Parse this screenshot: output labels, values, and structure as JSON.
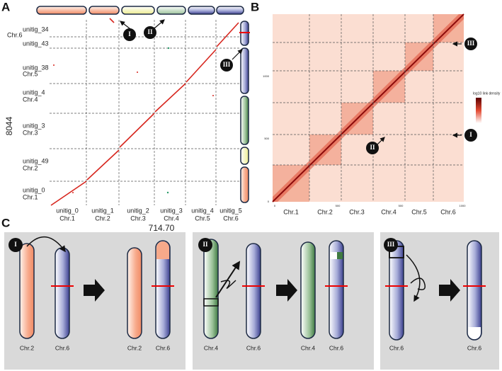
{
  "panel_a": {
    "label": "A",
    "y_labels": [
      "unitig_34",
      "Chr.6",
      "unitig_43",
      "unitig_38",
      "Chr.5",
      "unitig_4",
      "Chr.4",
      "unitig_3",
      "Chr.3",
      "unitig_49",
      "Chr.2",
      "unitig_0",
      "Chr.1"
    ],
    "x_labels": [
      [
        "unitig_0",
        "Chr.1"
      ],
      [
        "unitig_1",
        "Chr.2"
      ],
      [
        "unitig_2",
        "Chr.3"
      ],
      [
        "unitig_3",
        "Chr.4"
      ],
      [
        "unitig_4",
        "Chr.5"
      ],
      [
        "unitig_5",
        "Chr.6"
      ]
    ],
    "y_title": "8044",
    "x_title": "714.70",
    "markers": [
      "I",
      "II",
      "III"
    ]
  },
  "panel_b": {
    "label": "B",
    "x_labels": [
      "Chr.1",
      "Chr.2",
      "Chr.3",
      "Chr.4",
      "Chr.5",
      "Chr.6"
    ],
    "y_ticks": [
      "0",
      "500",
      "1000"
    ],
    "x_ticks": [
      "0",
      "500",
      "500",
      "1000"
    ],
    "legend_title": "log10 link density",
    "markers": [
      "III",
      "II",
      "I"
    ]
  },
  "panel_c": {
    "label": "C",
    "boxes": [
      {
        "marker": "I",
        "labels": [
          "Chr.2",
          "Chr.6",
          "Chr.2",
          "Chr.6"
        ]
      },
      {
        "marker": "II",
        "labels": [
          "Chr.4",
          "Chr.6",
          "Chr.4",
          "Chr.6"
        ]
      },
      {
        "marker": "III",
        "labels": [
          "Chr.6",
          "Chr.6"
        ]
      }
    ]
  }
}
